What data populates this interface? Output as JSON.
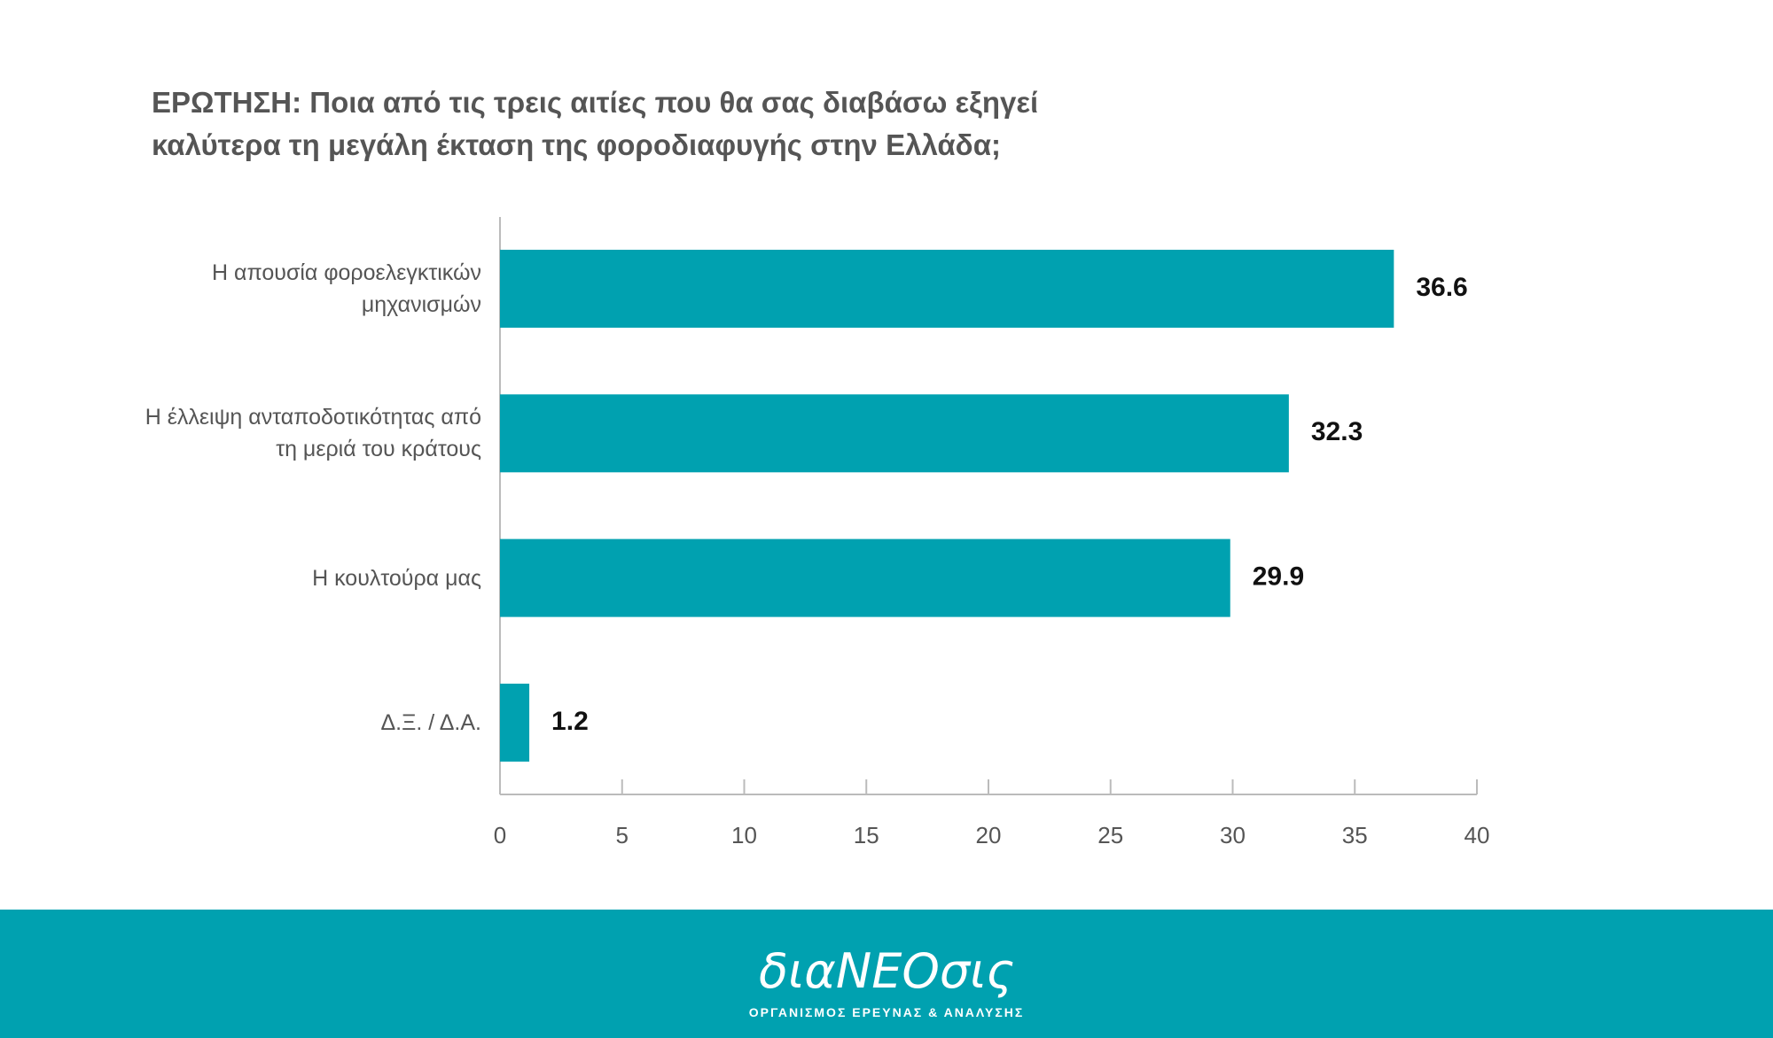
{
  "chart_data": {
    "type": "bar",
    "orientation": "horizontal",
    "title": "ΕΡΩΤΗΣΗ: Ποια από τις τρεις αιτίες που θα σας διαβάσω εξηγεί καλύτερα τη μεγάλη έκταση της φοροδιαφυγής στην Ελλάδα;",
    "categories": [
      "Η απουσία φοροελεγκτικών μηχανισμών",
      "Η έλλειψη ανταποδοτικότητας από τη μεριά του κράτους",
      "Η κουλτούρα μας",
      "Δ.Ξ. / Δ.Α."
    ],
    "values": [
      36.6,
      32.3,
      29.9,
      1.2
    ],
    "color": "#00a1b0",
    "xlim": [
      0,
      40
    ],
    "xticks": [
      0,
      5,
      10,
      15,
      20,
      25,
      30,
      35,
      40
    ]
  },
  "footer": {
    "logo": "διαΝΕΟσις",
    "tagline": "ΟΡΓΑΝΙΣΜΟΣ ΕΡΕΥΝΑΣ & ΑΝΑΛΥΣΗΣ"
  }
}
